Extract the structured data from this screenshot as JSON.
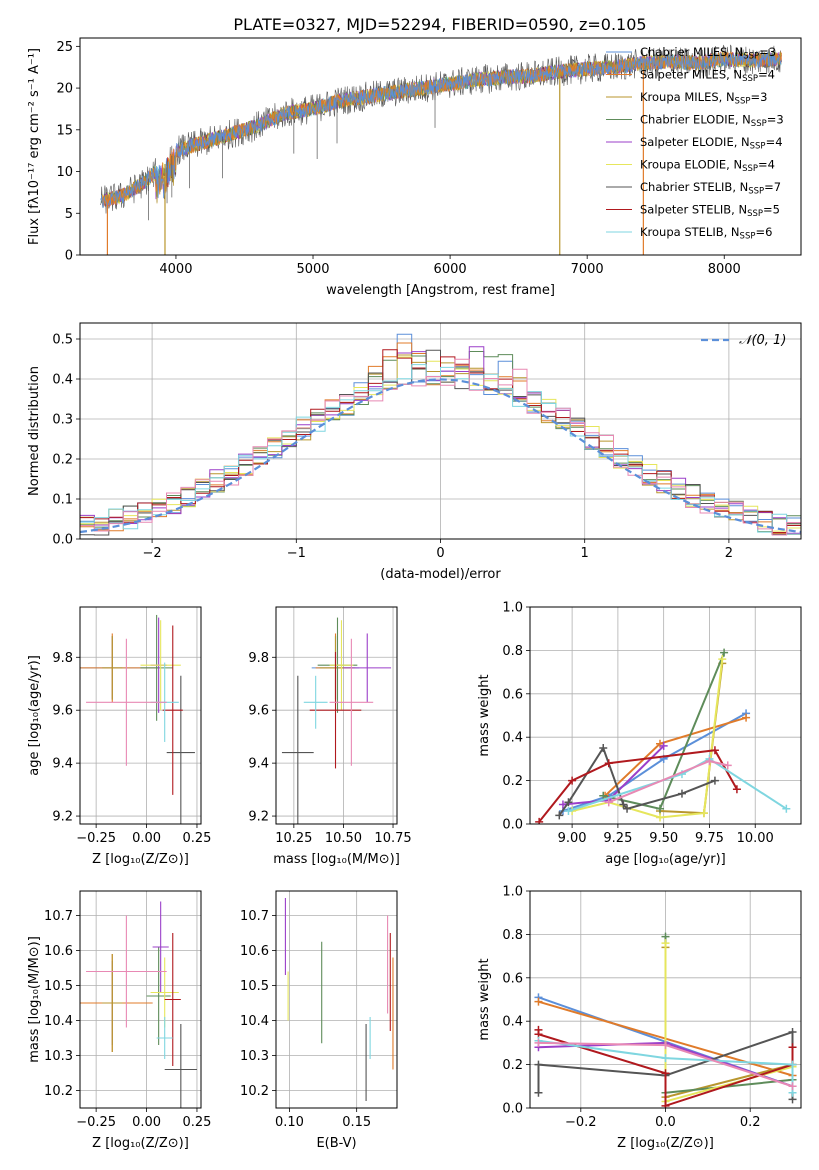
{
  "figure": {
    "title": "PLATE=0327, MJD=52294, FIBERID=0590, z=0.105"
  },
  "colors": {
    "chabrier_miles": "#5b8fd9",
    "salpeter_miles": "#e07b2a",
    "kroupa_miles": "#b8962e",
    "chabrier_elodie": "#5e8c5a",
    "salpeter_elodie": "#9b3fc9",
    "kroupa_elodie": "#e6e65c",
    "chabrier_stelib": "#555555",
    "salpeter_stelib": "#b0191e",
    "kroupa_stelib": "#7fd6e0",
    "pink": "#e889b4",
    "normal": "#5b8fd9",
    "grid": "#b0b0b0"
  },
  "chart_data": [
    {
      "id": "spectrum",
      "type": "line",
      "title": "PLATE=0327, MJD=52294, FIBERID=0590, z=0.105",
      "xlabel": "wavelength [Angstrom, rest frame]",
      "ylabel": "Flux [fλ10⁻¹⁷ erg cm⁻² s⁻¹ A⁻¹]",
      "xlim": [
        3300,
        8560
      ],
      "ylim": [
        0,
        26
      ],
      "xticks": [
        "4000",
        "5000",
        "6000",
        "7000",
        "8000"
      ],
      "yticks": [
        "0",
        "5",
        "10",
        "15",
        "20",
        "25"
      ],
      "grid": false,
      "legend_position": "top-right",
      "continuum": {
        "x": [
          3450,
          3600,
          3750,
          3900,
          4000,
          4200,
          4400,
          4600,
          4800,
          5000,
          5200,
          5400,
          5600,
          5800,
          6000,
          6200,
          6400,
          6600,
          6800,
          7000,
          7200,
          7400,
          7600,
          7800,
          8000,
          8200,
          8400
        ],
        "y": [
          6.5,
          7.0,
          8.5,
          10.5,
          12.5,
          13.5,
          14.5,
          15.5,
          17.0,
          17.5,
          18.5,
          19.0,
          19.5,
          20.0,
          20.5,
          21.0,
          21.3,
          21.5,
          22.0,
          22.3,
          22.5,
          23.0,
          23.2,
          23.0,
          23.5,
          23.3,
          23.5
        ]
      },
      "series": [
        {
          "name": "Chabrier MILES, N_SSP=3",
          "label_main": "Chabrier MILES, N",
          "label_sub": "SSP",
          "label_tail": "=3",
          "color": "#5b8fd9"
        },
        {
          "name": "Salpeter MILES, N_SSP=4",
          "label_main": "Salpeter MILES, N",
          "label_sub": "SSP",
          "label_tail": "=4",
          "color": "#e07b2a"
        },
        {
          "name": "Kroupa MILES, N_SSP=3",
          "label_main": "Kroupa MILES, N",
          "label_sub": "SSP",
          "label_tail": "=3",
          "color": "#b8962e"
        },
        {
          "name": "Chabrier ELODIE, N_SSP=3",
          "label_main": "Chabrier ELODIE, N",
          "label_sub": "SSP",
          "label_tail": "=3",
          "color": "#5e8c5a"
        },
        {
          "name": "Salpeter ELODIE, N_SSP=4",
          "label_main": "Salpeter ELODIE, N",
          "label_sub": "SSP",
          "label_tail": "=4",
          "color": "#9b3fc9"
        },
        {
          "name": "Kroupa ELODIE, N_SSP=4",
          "label_main": "Kroupa ELODIE, N",
          "label_sub": "SSP",
          "label_tail": "=4",
          "color": "#e6e65c"
        },
        {
          "name": "Chabrier STELIB, N_SSP=7",
          "label_main": "Chabrier STELIB, N",
          "label_sub": "SSP",
          "label_tail": "=7",
          "color": "#555555"
        },
        {
          "name": "Salpeter STELIB, N_SSP=5",
          "label_main": "Salpeter STELIB, N",
          "label_sub": "SSP",
          "label_tail": "=5",
          "color": "#b0191e"
        },
        {
          "name": "Kroupa STELIB, N_SSP=6",
          "label_main": "Kroupa STELIB, N",
          "label_sub": "SSP",
          "label_tail": "=6",
          "color": "#7fd6e0"
        }
      ],
      "drops": [
        {
          "x": 3500,
          "color": "#e07b2a"
        },
        {
          "x": 3920,
          "color": "#b8962e"
        },
        {
          "x": 6800,
          "color": "#b8962e"
        },
        {
          "x": 7410,
          "color": "#e07b2a"
        }
      ]
    },
    {
      "id": "residuals",
      "type": "line",
      "xlabel": "(data-model)/error",
      "ylabel": "Normed distribution",
      "xlim": [
        -2.5,
        2.5
      ],
      "ylim": [
        0,
        0.54
      ],
      "xticks": [
        "−2",
        "−1",
        "0",
        "1",
        "2"
      ],
      "yticks": [
        "0.0",
        "0.1",
        "0.2",
        "0.3",
        "0.4",
        "0.5"
      ],
      "grid": true,
      "legend_position": "top-right",
      "normal_label": "𝒩(0, 1)",
      "normal_color": "#5b8fd9",
      "bin_width": 0.1,
      "peaks": [
        0.512,
        0.49,
        0.46,
        0.465,
        0.465,
        0.455
      ]
    },
    {
      "id": "age-vs-Z",
      "type": "scatter",
      "xlabel": "Z [log₁₀(Z/Z⊙)]",
      "ylabel": "age  [log₁₀(age/yr)]",
      "xlim": [
        -0.33,
        0.27
      ],
      "ylim": [
        9.17,
        9.99
      ],
      "xticks": [
        "−0.25",
        "0.00",
        "0.25"
      ],
      "yticks": [
        "9.2",
        "9.4",
        "9.6",
        "9.8"
      ],
      "grid": true,
      "points": [
        {
          "x": -0.17,
          "y": 9.76,
          "xerr": 0.23,
          "yerr": 0.12,
          "color": "#5b8fd9"
        },
        {
          "x": -0.17,
          "y": 9.76,
          "xerr": 0.23,
          "yerr": 0.13,
          "color": "#e07b2a"
        },
        {
          "x": -0.17,
          "y": 9.76,
          "xerr": 0.05,
          "yerr": 0.12,
          "color": "#b8962e"
        },
        {
          "x": 0.05,
          "y": 9.76,
          "xerr": 0.08,
          "yerr": 0.2,
          "color": "#5e8c5a"
        },
        {
          "x": 0.06,
          "y": 9.77,
          "xerr": 0.04,
          "yerr": 0.18,
          "color": "#9b3fc9"
        },
        {
          "x": 0.07,
          "y": 9.77,
          "xerr": 0.1,
          "yerr": 0.17,
          "color": "#e6e65c"
        },
        {
          "x": 0.17,
          "y": 9.44,
          "xerr": 0.07,
          "yerr": 0.29,
          "color": "#555555"
        },
        {
          "x": 0.13,
          "y": 9.6,
          "xerr": 0.05,
          "yerr": 0.32,
          "color": "#b0191e"
        },
        {
          "x": 0.09,
          "y": 9.63,
          "xerr": 0.07,
          "yerr": 0.15,
          "color": "#7fd6e0"
        },
        {
          "x": -0.1,
          "y": 9.63,
          "xerr": 0.2,
          "yerr": 0.24,
          "color": "#e889b4"
        }
      ]
    },
    {
      "id": "age-vs-mass",
      "type": "scatter",
      "xlabel": "mass [log₁₀(M/M⊙)]",
      "ylabel": "",
      "xlim": [
        10.16,
        10.77
      ],
      "ylim": [
        9.17,
        9.99
      ],
      "xticks": [
        "10.25",
        "10.50",
        "10.75"
      ],
      "yticks": [
        "9.2",
        "9.4",
        "9.6",
        "9.8"
      ],
      "grid": true,
      "points": [
        {
          "x": 10.46,
          "y": 9.76,
          "xerr": 0.12,
          "yerr": 0.12,
          "color": "#5b8fd9"
        },
        {
          "x": 10.46,
          "y": 9.76,
          "xerr": 0.1,
          "yerr": 0.13,
          "color": "#e07b2a"
        },
        {
          "x": 10.46,
          "y": 9.76,
          "xerr": 0.08,
          "yerr": 0.12,
          "color": "#b8962e"
        },
        {
          "x": 10.47,
          "y": 9.77,
          "xerr": 0.1,
          "yerr": 0.18,
          "color": "#5e8c5a"
        },
        {
          "x": 10.62,
          "y": 9.76,
          "xerr": 0.12,
          "yerr": 0.13,
          "color": "#9b3fc9"
        },
        {
          "x": 10.49,
          "y": 9.77,
          "xerr": 0.06,
          "yerr": 0.17,
          "color": "#e6e65c"
        },
        {
          "x": 10.27,
          "y": 9.44,
          "xerr": 0.08,
          "yerr": 0.29,
          "color": "#555555"
        },
        {
          "x": 10.46,
          "y": 9.6,
          "xerr": 0.13,
          "yerr": 0.22,
          "color": "#b0191e"
        },
        {
          "x": 10.36,
          "y": 9.63,
          "xerr": 0.06,
          "yerr": 0.1,
          "color": "#7fd6e0"
        },
        {
          "x": 10.54,
          "y": 9.63,
          "xerr": 0.11,
          "yerr": 0.24,
          "color": "#e889b4"
        }
      ]
    },
    {
      "id": "mass-weight-vs-age",
      "type": "line",
      "xlabel": "age  [log₁₀(age/yr)]",
      "ylabel": "mass weight",
      "xlim": [
        8.77,
        10.25
      ],
      "ylim": [
        0,
        1
      ],
      "xticks": [
        "9.00",
        "9.25",
        "9.50",
        "9.75",
        "10.00"
      ],
      "yticks": [
        "0.0",
        "0.2",
        "0.4",
        "0.6",
        "0.8",
        "1.0"
      ],
      "grid": true,
      "series": [
        {
          "color": "#5b8fd9",
          "x": [
            8.95,
            9.2,
            9.5,
            9.95
          ],
          "y": [
            0.06,
            0.13,
            0.3,
            0.51
          ]
        },
        {
          "color": "#e07b2a",
          "x": [
            9.18,
            9.48,
            9.95
          ],
          "y": [
            0.13,
            0.37,
            0.49
          ]
        },
        {
          "color": "#b8962e",
          "x": [
            9.48,
            9.72,
            9.82
          ],
          "y": [
            0.06,
            0.05,
            0.74
          ]
        },
        {
          "color": "#5e8c5a",
          "x": [
            9.17,
            9.48,
            9.83
          ],
          "y": [
            0.13,
            0.07,
            0.79
          ]
        },
        {
          "color": "#9b3fc9",
          "x": [
            8.95,
            9.2,
            9.5
          ],
          "y": [
            0.09,
            0.11,
            0.36
          ]
        },
        {
          "color": "#e6e65c",
          "x": [
            9.0,
            9.2,
            9.48,
            9.72,
            9.82
          ],
          "y": [
            0.06,
            0.1,
            0.03,
            0.05,
            0.76
          ]
        },
        {
          "color": "#555555",
          "x": [
            8.93,
            8.98,
            9.17,
            9.28,
            9.3,
            9.6,
            9.78
          ],
          "y": [
            0.04,
            0.1,
            0.35,
            0.09,
            0.07,
            0.14,
            0.2
          ]
        },
        {
          "color": "#b0191e",
          "x": [
            8.82,
            9.0,
            9.2,
            9.78,
            9.9
          ],
          "y": [
            0.01,
            0.2,
            0.28,
            0.34,
            0.16
          ]
        },
        {
          "color": "#7fd6e0",
          "x": [
            8.98,
            9.6,
            9.75,
            10.17
          ],
          "y": [
            0.06,
            0.23,
            0.3,
            0.07
          ]
        },
        {
          "color": "#e889b4",
          "x": [
            9.2,
            9.75,
            9.85
          ],
          "y": [
            0.1,
            0.29,
            0.27
          ]
        }
      ]
    },
    {
      "id": "mass-vs-Z",
      "type": "scatter",
      "xlabel": "Z [log₁₀(Z/Z⊙)]",
      "ylabel": "mass [log₁₀(M/M⊙)]",
      "xlim": [
        -0.33,
        0.27
      ],
      "ylim": [
        10.15,
        10.77
      ],
      "xticks": [
        "−0.25",
        "0.00",
        "0.25"
      ],
      "yticks": [
        "10.2",
        "10.3",
        "10.4",
        "10.5",
        "10.6",
        "10.7"
      ],
      "grid": true,
      "points": [
        {
          "x": -0.17,
          "y": 10.45,
          "xerr": 0.2,
          "yerr": 0.12,
          "color": "#5b8fd9"
        },
        {
          "x": -0.17,
          "y": 10.45,
          "xerr": 0.2,
          "yerr": 0.14,
          "color": "#e07b2a"
        },
        {
          "x": -0.17,
          "y": 10.45,
          "xerr": 0.05,
          "yerr": 0.14,
          "color": "#b8962e"
        },
        {
          "x": 0.06,
          "y": 10.47,
          "xerr": 0.06,
          "yerr": 0.14,
          "color": "#5e8c5a"
        },
        {
          "x": 0.07,
          "y": 10.61,
          "xerr": 0.04,
          "yerr": 0.13,
          "color": "#9b3fc9"
        },
        {
          "x": 0.09,
          "y": 10.48,
          "xerr": 0.07,
          "yerr": 0.1,
          "color": "#e6e65c"
        },
        {
          "x": 0.17,
          "y": 10.26,
          "xerr": 0.08,
          "yerr": 0.13,
          "color": "#555555"
        },
        {
          "x": 0.13,
          "y": 10.46,
          "xerr": 0.04,
          "yerr": 0.19,
          "color": "#b0191e"
        },
        {
          "x": 0.09,
          "y": 10.35,
          "xerr": 0.04,
          "yerr": 0.06,
          "color": "#7fd6e0"
        },
        {
          "x": -0.1,
          "y": 10.54,
          "xerr": 0.2,
          "yerr": 0.16,
          "color": "#e889b4"
        }
      ]
    },
    {
      "id": "mass-vs-EBV",
      "type": "scatter",
      "xlabel": "E(B-V)",
      "ylabel": "",
      "xlim": [
        0.09,
        0.18
      ],
      "ylim": [
        10.15,
        10.77
      ],
      "xticks": [
        "0.10",
        "0.15"
      ],
      "yticks": [
        "10.2",
        "10.3",
        "10.4",
        "10.5",
        "10.6",
        "10.7"
      ],
      "grid": true,
      "points": [
        {
          "x": 0.097,
          "y": 10.64,
          "yerr": 0.11,
          "color": "#9b3fc9"
        },
        {
          "x": 0.099,
          "y": 10.47,
          "yerr": 0.07,
          "color": "#e6e65c"
        },
        {
          "x": 0.124,
          "y": 10.48,
          "yerr": 0.145,
          "color": "#5e8c5a"
        },
        {
          "x": 0.157,
          "y": 10.28,
          "yerr": 0.11,
          "color": "#555555"
        },
        {
          "x": 0.16,
          "y": 10.35,
          "yerr": 0.06,
          "color": "#7fd6e0"
        },
        {
          "x": 0.173,
          "y": 10.56,
          "yerr": 0.14,
          "color": "#e889b4"
        },
        {
          "x": 0.175,
          "y": 10.51,
          "yerr": 0.14,
          "color": "#b0191e"
        },
        {
          "x": 0.177,
          "y": 10.42,
          "yerr": 0.16,
          "color": "#e07b2a"
        }
      ]
    },
    {
      "id": "mass-weight-vs-Z",
      "type": "line",
      "xlabel": "Z [log₁₀(Z/Z⊙)]",
      "ylabel": "mass weight",
      "xlim": [
        -0.32,
        0.32
      ],
      "ylim": [
        0,
        1
      ],
      "xticks": [
        "−0.2",
        "0.0",
        "0.2"
      ],
      "yticks": [
        "0.0",
        "0.2",
        "0.4",
        "0.6",
        "0.8",
        "1.0"
      ],
      "grid": true,
      "series": [
        {
          "color": "#5b8fd9",
          "x": [
            -0.3,
            0.3
          ],
          "y": [
            0.51,
            0.1
          ]
        },
        {
          "color": "#e07b2a",
          "x": [
            -0.3,
            0.3
          ],
          "y": [
            0.49,
            0.15
          ]
        },
        {
          "color": "#b8962e",
          "x": [
            0.0,
            0.0,
            0.3
          ],
          "y": [
            0.74,
            0.05,
            0.2
          ]
        },
        {
          "color": "#5e8c5a",
          "x": [
            0.0,
            0.0,
            0.3
          ],
          "y": [
            0.79,
            0.07,
            0.13
          ]
        },
        {
          "color": "#9b3fc9",
          "x": [
            -0.3,
            0.0,
            0.3
          ],
          "y": [
            0.28,
            0.3,
            0.1
          ]
        },
        {
          "color": "#e6e65c",
          "x": [
            0.0,
            0.0,
            0.3
          ],
          "y": [
            0.76,
            0.03,
            0.19
          ]
        },
        {
          "color": "#555555",
          "x": [
            -0.3,
            -0.3,
            0.0,
            0.3,
            0.3
          ],
          "y": [
            0.07,
            0.2,
            0.15,
            0.35,
            0.04
          ]
        },
        {
          "color": "#b0191e",
          "x": [
            -0.3,
            -0.3,
            0.0,
            0.0,
            0.3,
            0.3
          ],
          "y": [
            0.36,
            0.34,
            0.16,
            0.01,
            0.2,
            0.28
          ]
        },
        {
          "color": "#7fd6e0",
          "x": [
            -0.3,
            0.0,
            0.3,
            0.3
          ],
          "y": [
            0.31,
            0.23,
            0.2,
            0.07
          ]
        },
        {
          "color": "#e889b4",
          "x": [
            -0.3,
            0.0,
            0.3
          ],
          "y": [
            0.3,
            0.29,
            0.1
          ]
        }
      ]
    }
  ]
}
